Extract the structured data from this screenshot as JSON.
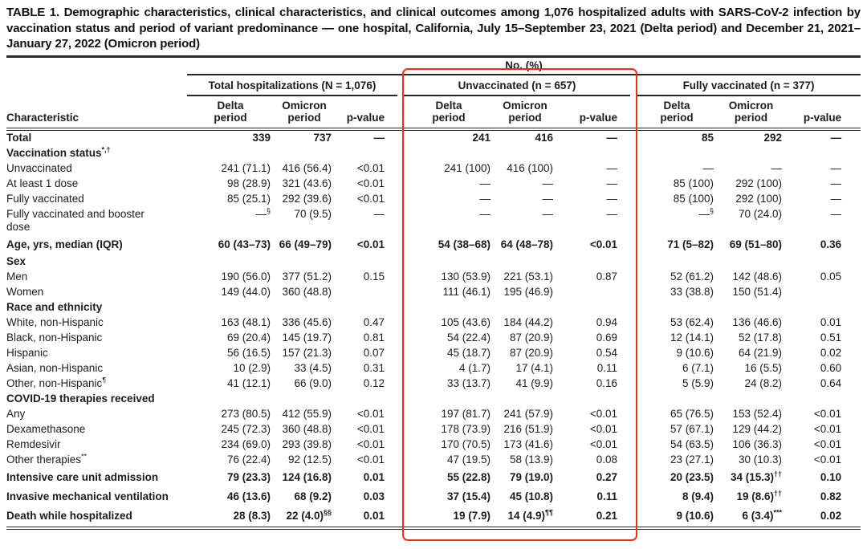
{
  "title": "TABLE 1. Demographic characteristics, clinical characteristics, and clinical outcomes among 1,076 hospitalized adults with SARS-CoV-2 infection by vaccination status and period of variant predominance — one hospital, California, July 15–September 23, 2021 (Delta period) and December 21, 2021–January 27, 2022 (Omicron period)",
  "table": {
    "unit_header": "No. (%)",
    "characteristic_header": "Characteristic",
    "groups": [
      {
        "label": "Total hospitalizations (N = 1,076)",
        "highlighted": false
      },
      {
        "label": "Unvaccinated (n = 657)",
        "highlighted": true
      },
      {
        "label": "Fully vaccinated (n = 377)",
        "highlighted": false
      }
    ],
    "sub_columns": [
      "Delta\nperiod",
      "Omicron\nperiod",
      "p-value"
    ],
    "rows": [
      {
        "label": "Total",
        "style": "total",
        "cells": [
          "339",
          "737",
          "—",
          "241",
          "416",
          "—",
          "85",
          "292",
          "—"
        ]
      },
      {
        "label": "Vaccination status^*,†",
        "style": "section"
      },
      {
        "label": "Unvaccinated",
        "style": "plain",
        "cells": [
          "241 (71.1)",
          "416 (56.4)",
          "<0.01",
          "241 (100)",
          "416 (100)",
          "—",
          "—",
          "—",
          "—"
        ]
      },
      {
        "label": "At least 1 dose",
        "style": "plain",
        "cells": [
          "98 (28.9)",
          "321 (43.6)",
          "<0.01",
          "—",
          "—",
          "—",
          "85 (100)",
          "292 (100)",
          "—"
        ]
      },
      {
        "label": "Fully vaccinated",
        "style": "plain",
        "cells": [
          "85 (25.1)",
          "292 (39.6)",
          "<0.01",
          "—",
          "—",
          "—",
          "85 (100)",
          "292 (100)",
          "—"
        ]
      },
      {
        "label": "Fully vaccinated and booster\ndose",
        "style": "plain",
        "cells": [
          "—^§",
          "70 (9.5)",
          "—",
          "—",
          "—",
          "—",
          "—^§",
          "70 (24.0)",
          "—"
        ]
      },
      {
        "label": "Age, yrs, median (IQR)",
        "style": "bold",
        "cells": [
          "60 (43–73)",
          "66 (49–79)",
          "<0.01",
          "54 (38–68)",
          "64 (48–78)",
          "<0.01",
          "71 (5–82)",
          "69 (51–80)",
          "0.36"
        ]
      },
      {
        "label": "Sex",
        "style": "section"
      },
      {
        "label": "Men",
        "style": "plain",
        "cells": [
          "190 (56.0)",
          "377 (51.2)",
          "0.15",
          "130 (53.9)",
          "221 (53.1)",
          "0.87",
          "52 (61.2)",
          "142 (48.6)",
          "0.05"
        ]
      },
      {
        "label": "Women",
        "style": "plain",
        "cells": [
          "149 (44.0)",
          "360 (48.8)",
          "",
          "111 (46.1)",
          "195 (46.9)",
          "",
          "33 (38.8)",
          "150 (51.4)",
          ""
        ]
      },
      {
        "label": "Race and ethnicity",
        "style": "section"
      },
      {
        "label": "White, non-Hispanic",
        "style": "plain",
        "cells": [
          "163 (48.1)",
          "336 (45.6)",
          "0.47",
          "105 (43.6)",
          "184 (44.2)",
          "0.94",
          "53 (62.4)",
          "136 (46.6)",
          "0.01"
        ]
      },
      {
        "label": "Black, non-Hispanic",
        "style": "plain",
        "cells": [
          "69 (20.4)",
          "145 (19.7)",
          "0.81",
          "54 (22.4)",
          "87 (20.9)",
          "0.69",
          "12 (14.1)",
          "52 (17.8)",
          "0.51"
        ]
      },
      {
        "label": "Hispanic",
        "style": "plain",
        "cells": [
          "56 (16.5)",
          "157 (21.3)",
          "0.07",
          "45 (18.7)",
          "87 (20.9)",
          "0.54",
          "9 (10.6)",
          "64 (21.9)",
          "0.02"
        ]
      },
      {
        "label": "Asian, non-Hispanic",
        "style": "plain",
        "cells": [
          "10 (2.9)",
          "33 (4.5)",
          "0.31",
          "4 (1.7)",
          "17 (4.1)",
          "0.11",
          "6 (7.1)",
          "16 (5.5)",
          "0.60"
        ]
      },
      {
        "label": "Other, non-Hispanic^¶",
        "style": "plain",
        "cells": [
          "41 (12.1)",
          "66 (9.0)",
          "0.12",
          "33 (13.7)",
          "41 (9.9)",
          "0.16",
          "5 (5.9)",
          "24 (8.2)",
          "0.64"
        ]
      },
      {
        "label": "COVID-19 therapies received",
        "style": "section"
      },
      {
        "label": "Any",
        "style": "plain",
        "cells": [
          "273 (80.5)",
          "412 (55.9)",
          "<0.01",
          "197 (81.7)",
          "241 (57.9)",
          "<0.01",
          "65 (76.5)",
          "153 (52.4)",
          "<0.01"
        ]
      },
      {
        "label": "Dexamethasone",
        "style": "plain",
        "cells": [
          "245 (72.3)",
          "360 (48.8)",
          "<0.01",
          "178 (73.9)",
          "216 (51.9)",
          "<0.01",
          "57 (67.1)",
          "129 (44.2)",
          "<0.01"
        ]
      },
      {
        "label": "Remdesivir",
        "style": "plain",
        "cells": [
          "234 (69.0)",
          "293 (39.8)",
          "<0.01",
          "170 (70.5)",
          "173 (41.6)",
          "<0.01",
          "54 (63.5)",
          "106 (36.3)",
          "<0.01"
        ]
      },
      {
        "label": "Other therapies^**",
        "style": "plain",
        "cells": [
          "76 (22.4)",
          "92 (12.5)",
          "<0.01",
          "47 (19.5)",
          "58 (13.9)",
          "0.08",
          "23 (27.1)",
          "30 (10.3)",
          "<0.01"
        ]
      },
      {
        "label": "Intensive care unit admission",
        "style": "bold",
        "cells": [
          "79 (23.3)",
          "124 (16.8)",
          "0.01",
          "55 (22.8)",
          "79 (19.0)",
          "0.27",
          "20 (23.5)",
          "34 (15.3)^††",
          "0.10"
        ]
      },
      {
        "label": "Invasive mechanical ventilation",
        "style": "bold",
        "cells": [
          "46 (13.6)",
          "68 (9.2)",
          "0.03",
          "37 (15.4)",
          "45 (10.8)",
          "0.11",
          "8 (9.4)",
          "19 (8.6)^††",
          "0.82"
        ]
      },
      {
        "label": "Death while hospitalized",
        "style": "bold",
        "cells": [
          "28 (8.3)",
          "22 (4.0)^§§",
          "0.01",
          "19 (7.9)",
          "14 (4.9)^¶¶",
          "0.21",
          "9 (10.6)",
          "6 (3.4)^***",
          "0.02"
        ]
      }
    ]
  },
  "highlight": {
    "color": "#ee2e24",
    "target_group": "Unvaccinated (n = 657)"
  }
}
